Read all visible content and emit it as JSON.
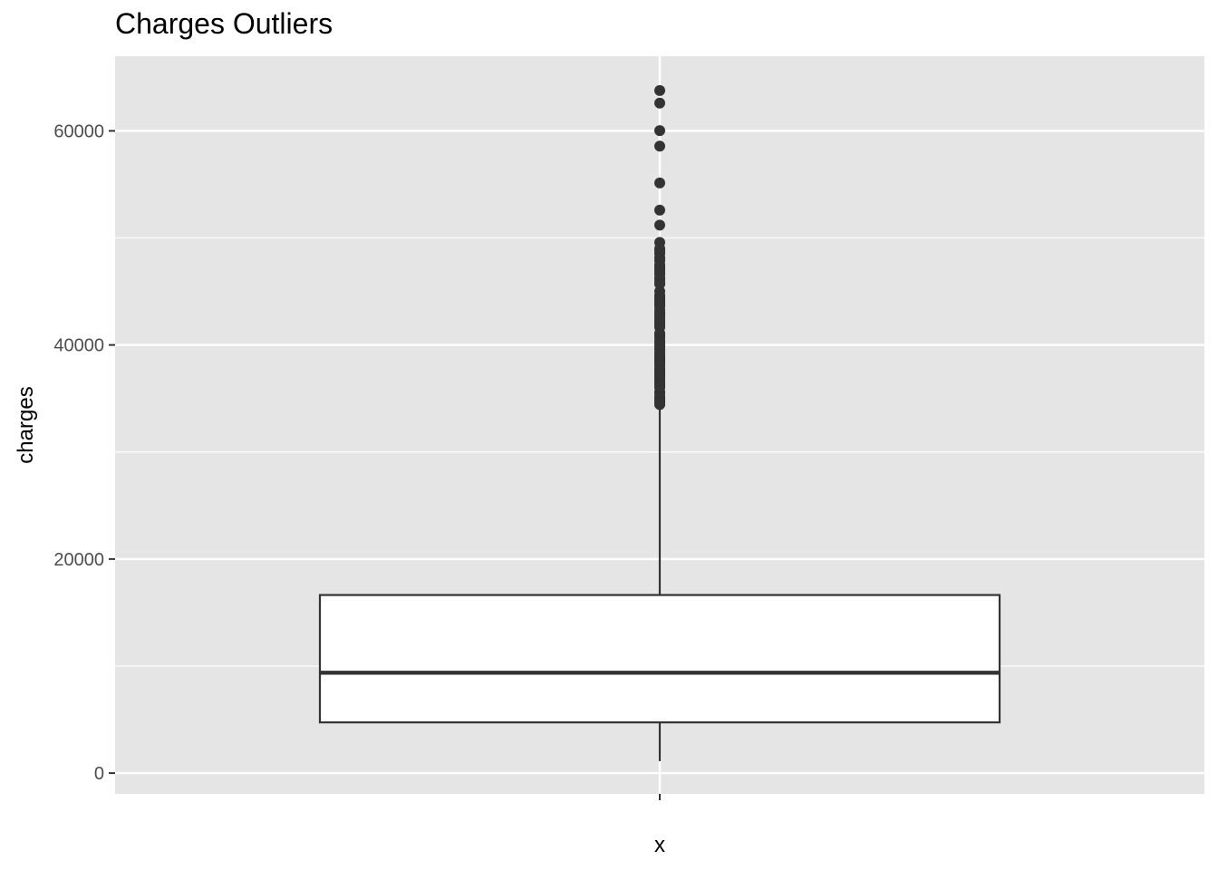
{
  "chart_data": {
    "type": "box",
    "title": "Charges Outliers",
    "xlabel": "x",
    "ylabel": "charges",
    "categories": [
      ""
    ],
    "ylim": [
      -1939,
      66978
    ],
    "yticks": [
      0,
      20000,
      40000,
      60000
    ],
    "ytick_labels": [
      "0",
      "20000",
      "40000",
      "60000"
    ],
    "grid": true,
    "legend": "none",
    "colors": {
      "panel_background": "#e5e5e5",
      "grid": "#ffffff",
      "box_fill": "#ffffff",
      "box_line": "#333333",
      "outlier": "#333333"
    },
    "box": {
      "whisker_low": 1122,
      "q1": 4740,
      "median": 9382,
      "q3": 16640,
      "whisker_high": 34300
    },
    "outliers": [
      63770,
      62593,
      60021,
      58571,
      55135,
      52591,
      51195,
      49578,
      49000,
      48885,
      48675,
      48549,
      48173,
      47928,
      47896,
      47496,
      47403,
      47305,
      47291,
      47269,
      47055,
      46889,
      46719,
      46600,
      46255,
      46200,
      46151,
      46113,
      45863,
      45710,
      45702,
      45008,
      44641,
      44585,
      44501,
      44423,
      44400,
      44260,
      44202,
      43943,
      43921,
      43896,
      43813,
      43754,
      43578,
      43254,
      42983,
      42969,
      42856,
      42760,
      42560,
      42303,
      42212,
      42124,
      42112,
      41999,
      41919,
      41676,
      41661,
      41097,
      40974,
      40941,
      40932,
      40904,
      40720,
      40419,
      40273,
      40182,
      40103,
      40003,
      39983,
      39872,
      39837,
      39774,
      39727,
      39611,
      39598,
      39557,
      39241,
      39126,
      39048,
      38998,
      38810,
      38792,
      38746,
      38711,
      38511,
      38415,
      38345,
      38282,
      38245,
      38126,
      37829,
      37742,
      37701,
      37607,
      37485,
      37465,
      37270,
      37165,
      37133,
      37079,
      36950,
      36898,
      36837,
      36580,
      36397,
      36307,
      36219,
      36197,
      36150,
      36124,
      36086,
      36022,
      35595,
      35585,
      35491,
      35160,
      35147,
      35070,
      34838,
      34806,
      34779,
      34672,
      34617,
      34472,
      34439
    ]
  }
}
